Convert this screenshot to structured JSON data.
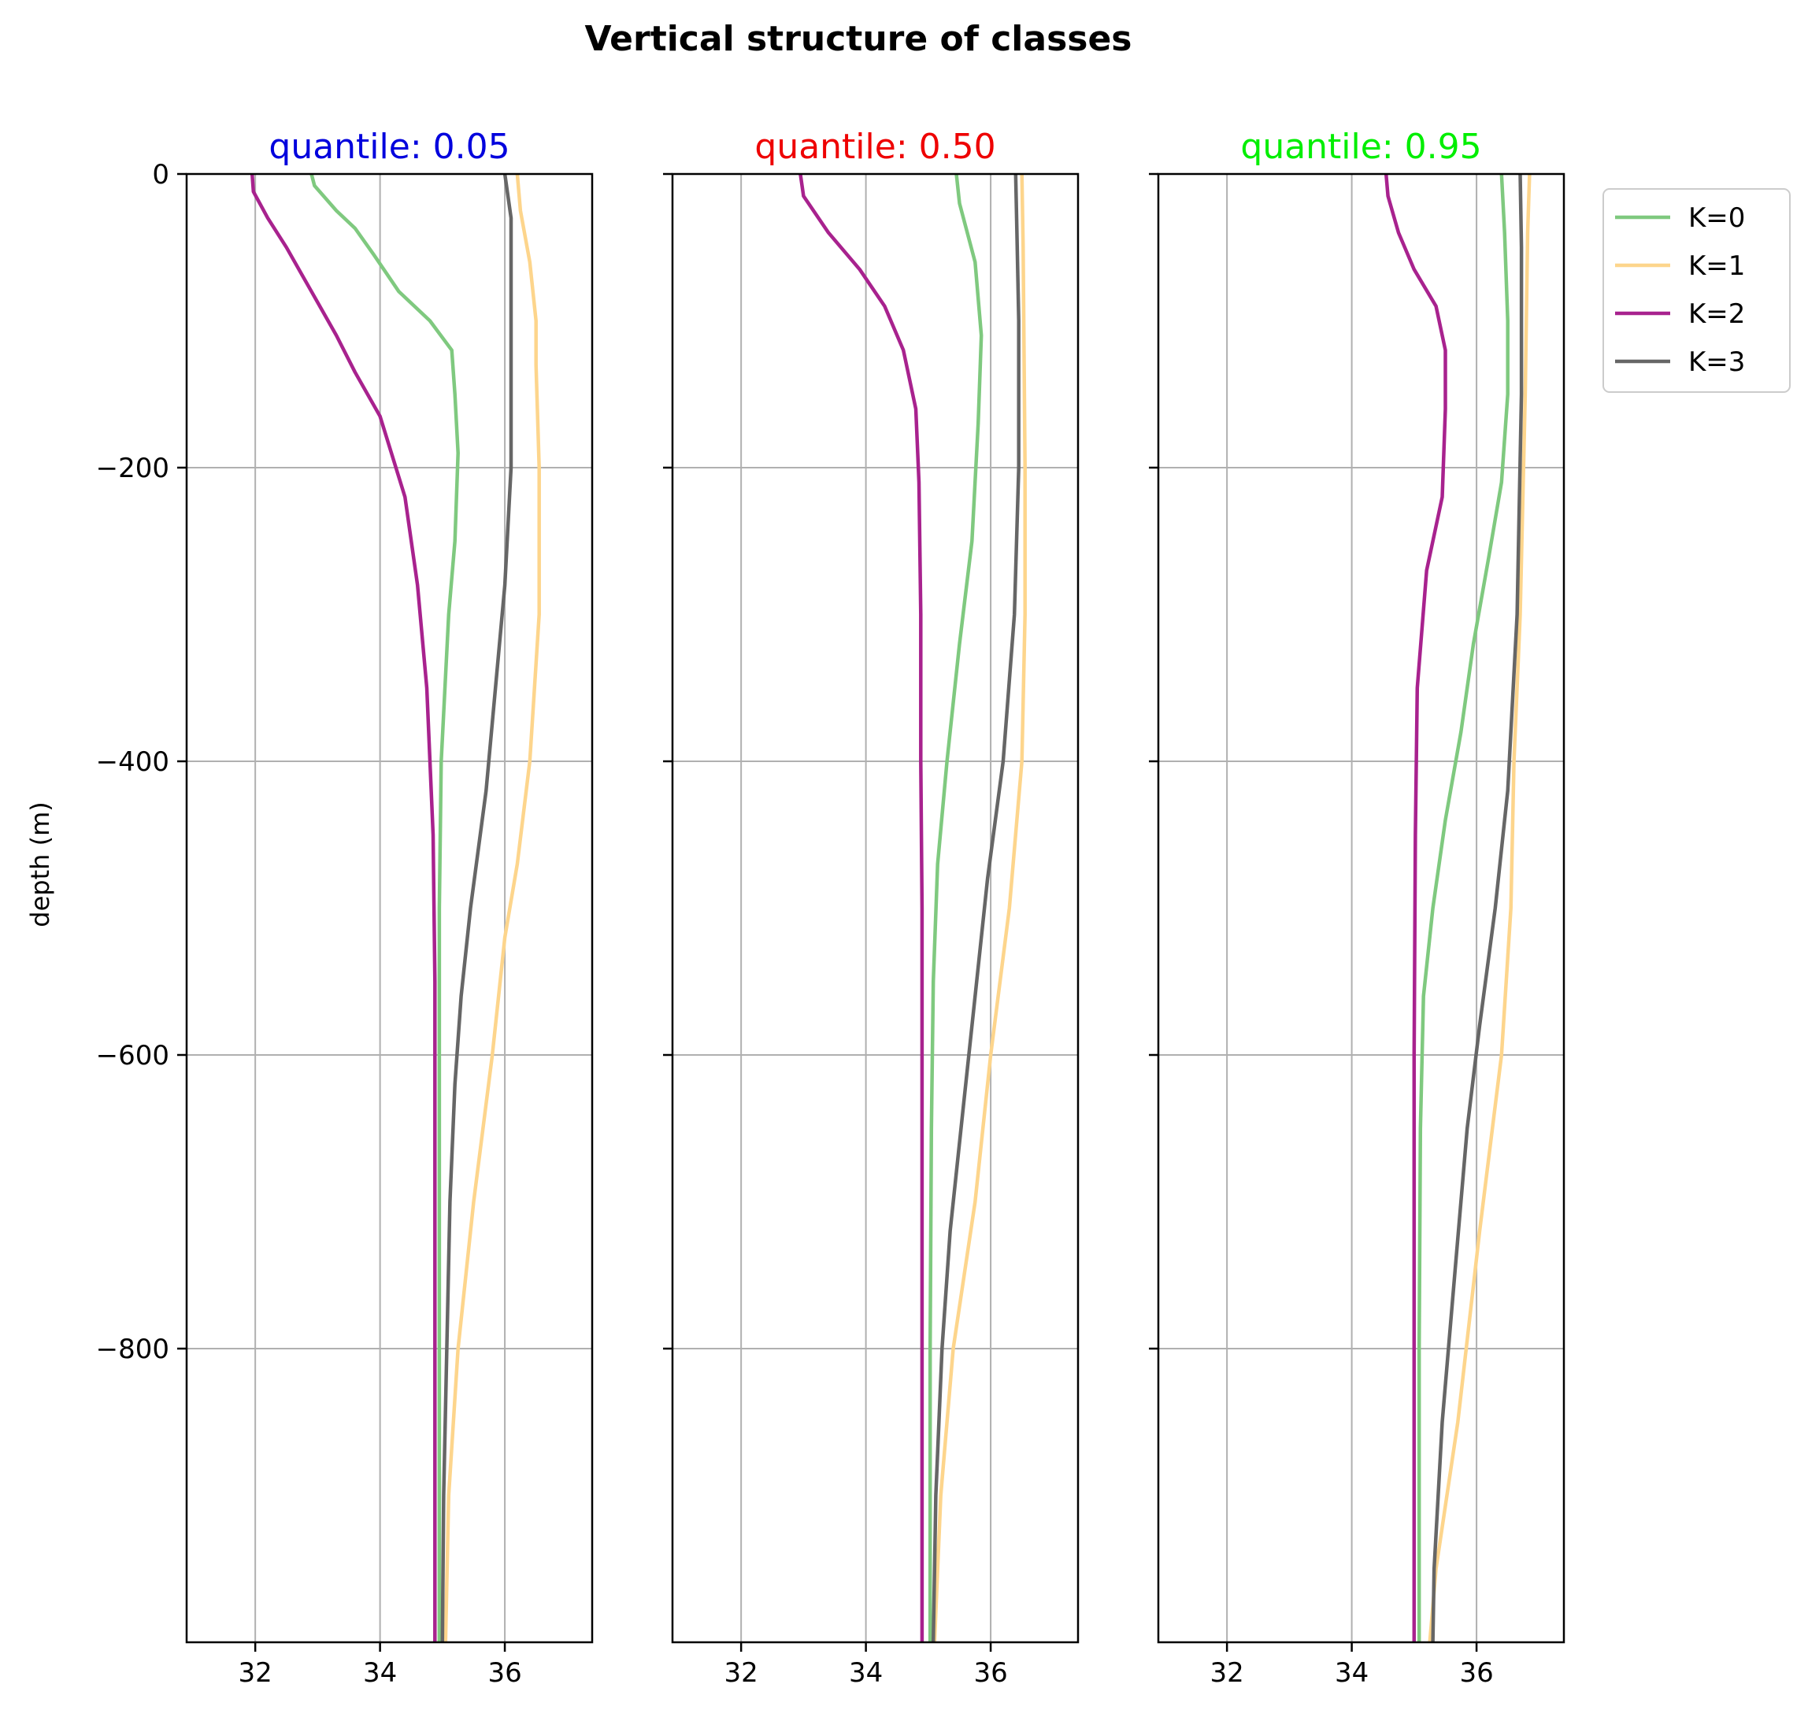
{
  "chart_data": {
    "type": "line",
    "title": "Vertical structure of classes",
    "ylabel": "depth (m)",
    "xlabel": "",
    "xlim": [
      30.9,
      37.4
    ],
    "ylim": [
      -1000,
      0
    ],
    "xticks": [
      32,
      34,
      36
    ],
    "xtick_labels": [
      "32",
      "34",
      "36"
    ],
    "yticks": [
      0,
      -200,
      -400,
      -600,
      -800
    ],
    "ytick_labels": [
      "0",
      "−200",
      "−400",
      "−600",
      "−800"
    ],
    "grid": true,
    "legend_placement": "outside upper right",
    "legend": [
      {
        "label": "K=0",
        "color": "#7fc97f"
      },
      {
        "label": "K=1",
        "color": "#fdd58c"
      },
      {
        "label": "K=2",
        "color": "#a8228e"
      },
      {
        "label": "K=3",
        "color": "#666666"
      }
    ],
    "panels": [
      {
        "title": "quantile: 0.05",
        "title_color": "#0000dd",
        "series": [
          {
            "name": "K=0",
            "color": "#7fc97f",
            "points": [
              [
                32.9,
                0
              ],
              [
                32.95,
                -8
              ],
              [
                33.3,
                -25
              ],
              [
                33.6,
                -37
              ],
              [
                33.9,
                -55
              ],
              [
                34.3,
                -80
              ],
              [
                34.8,
                -100
              ],
              [
                35.15,
                -120
              ],
              [
                35.2,
                -150
              ],
              [
                35.25,
                -190
              ],
              [
                35.2,
                -250
              ],
              [
                35.1,
                -300
              ],
              [
                34.98,
                -400
              ],
              [
                34.95,
                -500
              ],
              [
                34.95,
                -600
              ],
              [
                34.95,
                -1000
              ]
            ]
          },
          {
            "name": "K=1",
            "color": "#fdd58c",
            "points": [
              [
                36.2,
                0
              ],
              [
                36.25,
                -25
              ],
              [
                36.4,
                -60
              ],
              [
                36.5,
                -100
              ],
              [
                36.5,
                -130
              ],
              [
                36.55,
                -200
              ],
              [
                36.55,
                -300
              ],
              [
                36.4,
                -400
              ],
              [
                36.2,
                -470
              ],
              [
                36.0,
                -520
              ],
              [
                35.8,
                -600
              ],
              [
                35.5,
                -700
              ],
              [
                35.25,
                -800
              ],
              [
                35.1,
                -900
              ],
              [
                35.05,
                -1000
              ]
            ]
          },
          {
            "name": "K=2",
            "color": "#a8228e",
            "points": [
              [
                31.95,
                0
              ],
              [
                31.97,
                -12
              ],
              [
                32.2,
                -30
              ],
              [
                32.5,
                -50
              ],
              [
                32.9,
                -80
              ],
              [
                33.3,
                -110
              ],
              [
                33.6,
                -135
              ],
              [
                34.0,
                -165
              ],
              [
                34.4,
                -220
              ],
              [
                34.6,
                -280
              ],
              [
                34.75,
                -350
              ],
              [
                34.85,
                -450
              ],
              [
                34.88,
                -550
              ],
              [
                34.88,
                -700
              ],
              [
                34.88,
                -1000
              ]
            ]
          },
          {
            "name": "K=3",
            "color": "#666666",
            "points": [
              [
                36.0,
                0
              ],
              [
                36.1,
                -30
              ],
              [
                36.1,
                -100
              ],
              [
                36.1,
                -200
              ],
              [
                36.0,
                -280
              ],
              [
                35.85,
                -350
              ],
              [
                35.7,
                -420
              ],
              [
                35.45,
                -500
              ],
              [
                35.3,
                -560
              ],
              [
                35.2,
                -620
              ],
              [
                35.12,
                -700
              ],
              [
                35.07,
                -800
              ],
              [
                35.02,
                -900
              ],
              [
                35.0,
                -1000
              ]
            ]
          }
        ]
      },
      {
        "title": "quantile: 0.50",
        "title_color": "#ee0000",
        "series": [
          {
            "name": "K=0",
            "color": "#7fc97f",
            "points": [
              [
                35.45,
                0
              ],
              [
                35.5,
                -20
              ],
              [
                35.75,
                -60
              ],
              [
                35.85,
                -110
              ],
              [
                35.8,
                -170
              ],
              [
                35.7,
                -250
              ],
              [
                35.5,
                -320
              ],
              [
                35.3,
                -400
              ],
              [
                35.15,
                -470
              ],
              [
                35.08,
                -550
              ],
              [
                35.05,
                -650
              ],
              [
                35.03,
                -800
              ],
              [
                35.03,
                -1000
              ]
            ]
          },
          {
            "name": "K=1",
            "color": "#fdd58c",
            "points": [
              [
                36.5,
                0
              ],
              [
                36.52,
                -50
              ],
              [
                36.55,
                -200
              ],
              [
                36.55,
                -300
              ],
              [
                36.5,
                -400
              ],
              [
                36.3,
                -500
              ],
              [
                36.0,
                -600
              ],
              [
                35.75,
                -700
              ],
              [
                35.4,
                -800
              ],
              [
                35.2,
                -900
              ],
              [
                35.1,
                -1000
              ]
            ]
          },
          {
            "name": "K=2",
            "color": "#a8228e",
            "points": [
              [
                32.95,
                0
              ],
              [
                33.0,
                -15
              ],
              [
                33.4,
                -40
              ],
              [
                33.9,
                -65
              ],
              [
                34.3,
                -90
              ],
              [
                34.6,
                -120
              ],
              [
                34.8,
                -160
              ],
              [
                34.85,
                -210
              ],
              [
                34.88,
                -300
              ],
              [
                34.88,
                -400
              ],
              [
                34.9,
                -500
              ],
              [
                34.9,
                -600
              ],
              [
                34.9,
                -1000
              ]
            ]
          },
          {
            "name": "K=3",
            "color": "#666666",
            "points": [
              [
                36.4,
                0
              ],
              [
                36.42,
                -40
              ],
              [
                36.45,
                -100
              ],
              [
                36.45,
                -200
              ],
              [
                36.38,
                -300
              ],
              [
                36.2,
                -400
              ],
              [
                35.95,
                -480
              ],
              [
                35.75,
                -560
              ],
              [
                35.55,
                -640
              ],
              [
                35.35,
                -720
              ],
              [
                35.22,
                -800
              ],
              [
                35.12,
                -900
              ],
              [
                35.08,
                -1000
              ]
            ]
          }
        ]
      },
      {
        "title": "quantile: 0.95",
        "title_color": "#00ee00",
        "series": [
          {
            "name": "K=0",
            "color": "#7fc97f",
            "points": [
              [
                36.4,
                0
              ],
              [
                36.45,
                -40
              ],
              [
                36.5,
                -100
              ],
              [
                36.5,
                -150
              ],
              [
                36.4,
                -210
              ],
              [
                36.2,
                -260
              ],
              [
                35.95,
                -320
              ],
              [
                35.75,
                -380
              ],
              [
                35.5,
                -440
              ],
              [
                35.3,
                -500
              ],
              [
                35.15,
                -560
              ],
              [
                35.1,
                -650
              ],
              [
                35.08,
                -800
              ],
              [
                35.08,
                -1000
              ]
            ]
          },
          {
            "name": "K=1",
            "color": "#fdd58c",
            "points": [
              [
                36.85,
                0
              ],
              [
                36.82,
                -40
              ],
              [
                36.78,
                -150
              ],
              [
                36.7,
                -300
              ],
              [
                36.6,
                -400
              ],
              [
                36.55,
                -500
              ],
              [
                36.4,
                -600
              ],
              [
                36.05,
                -720
              ],
              [
                35.7,
                -850
              ],
              [
                35.35,
                -950
              ],
              [
                35.25,
                -1000
              ]
            ]
          },
          {
            "name": "K=2",
            "color": "#a8228e",
            "points": [
              [
                34.55,
                0
              ],
              [
                34.58,
                -15
              ],
              [
                34.75,
                -40
              ],
              [
                35.0,
                -65
              ],
              [
                35.35,
                -90
              ],
              [
                35.5,
                -120
              ],
              [
                35.5,
                -160
              ],
              [
                35.45,
                -220
              ],
              [
                35.2,
                -270
              ],
              [
                35.05,
                -350
              ],
              [
                35.02,
                -450
              ],
              [
                35.0,
                -600
              ],
              [
                35.0,
                -1000
              ]
            ]
          },
          {
            "name": "K=3",
            "color": "#666666",
            "points": [
              [
                36.7,
                0
              ],
              [
                36.72,
                -50
              ],
              [
                36.72,
                -150
              ],
              [
                36.65,
                -300
              ],
              [
                36.5,
                -420
              ],
              [
                36.3,
                -500
              ],
              [
                36.05,
                -580
              ],
              [
                35.85,
                -650
              ],
              [
                35.65,
                -750
              ],
              [
                35.45,
                -850
              ],
              [
                35.32,
                -950
              ],
              [
                35.3,
                -1000
              ]
            ]
          }
        ]
      }
    ]
  }
}
